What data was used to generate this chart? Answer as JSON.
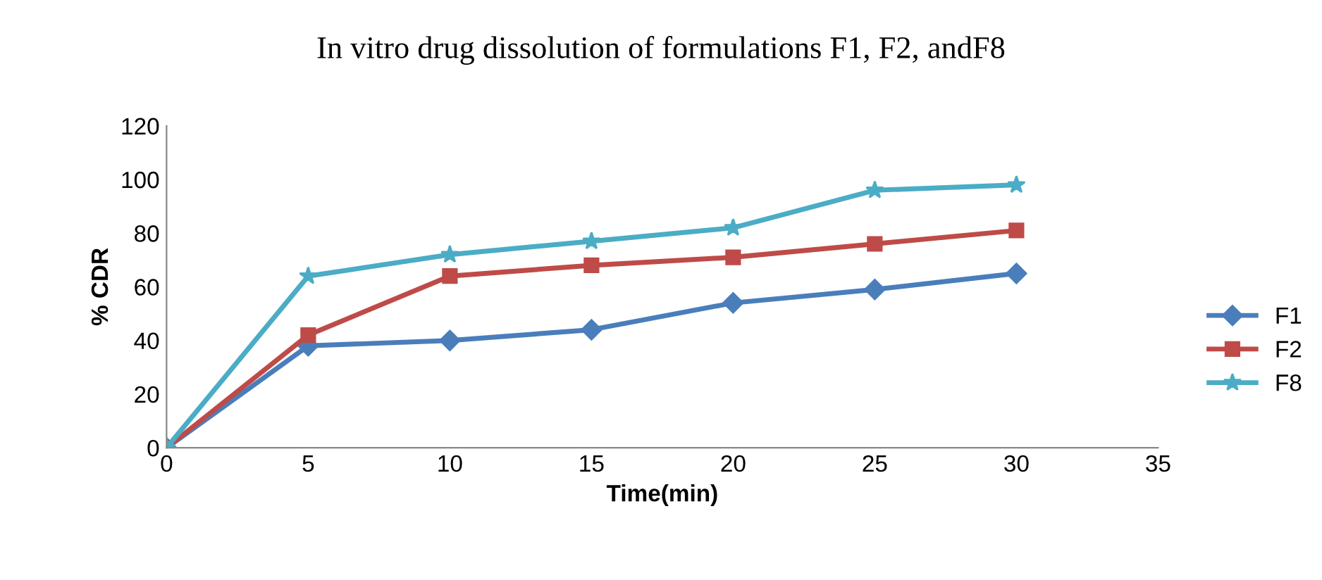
{
  "chart_data": {
    "type": "line",
    "title": "In vitro drug dissolution of formulations F1, F2, andF8",
    "xlabel": "Time(min)",
    "ylabel": "% CDR",
    "x": [
      0,
      5,
      10,
      15,
      20,
      25,
      30
    ],
    "series": [
      {
        "name": "F1",
        "color": "#4a7ebb",
        "marker": "diamond",
        "values": [
          0,
          38,
          40,
          44,
          54,
          59,
          65
        ]
      },
      {
        "name": "F2",
        "color": "#be4b48",
        "marker": "square",
        "values": [
          0,
          42,
          64,
          68,
          71,
          76,
          81
        ]
      },
      {
        "name": "F8",
        "color": "#4bacc6",
        "marker": "star",
        "values": [
          0,
          64,
          72,
          77,
          82,
          96,
          98
        ]
      }
    ],
    "xlim": [
      0,
      35
    ],
    "xticks": [
      0,
      5,
      10,
      15,
      20,
      25,
      30,
      35
    ],
    "ylim": [
      0,
      120
    ],
    "yticks": [
      0,
      20,
      40,
      60,
      80,
      100,
      120
    ],
    "grid": false,
    "legend": "right",
    "line_style": "solid"
  }
}
